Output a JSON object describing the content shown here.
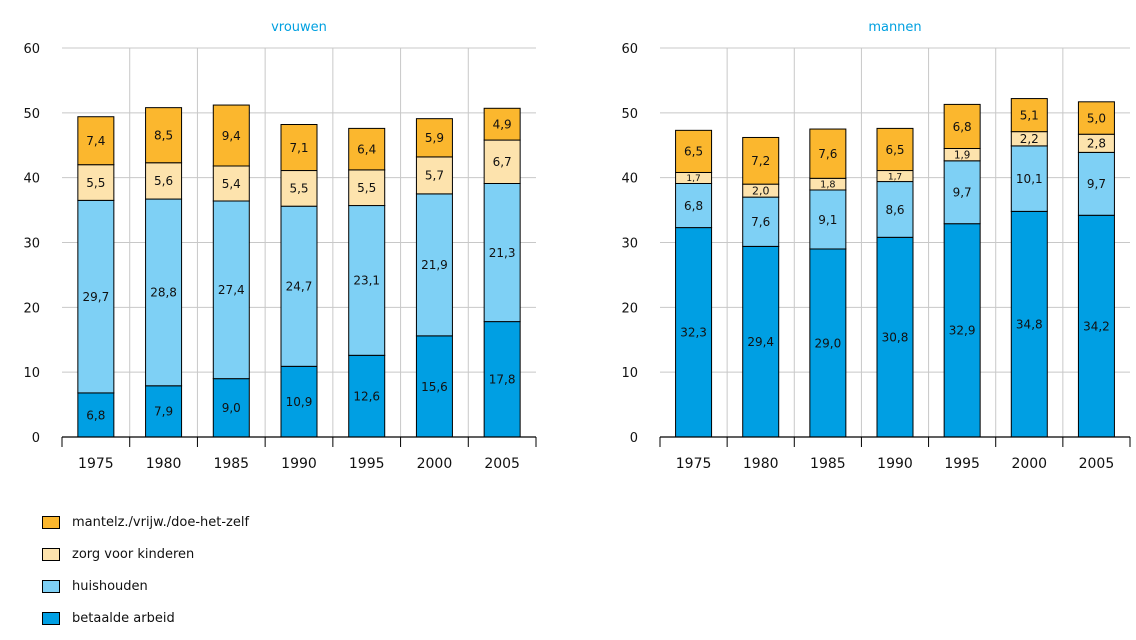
{
  "chart_data": [
    {
      "type": "bar",
      "stacked": true,
      "title": "vrouwen",
      "categories": [
        "1975",
        "1980",
        "1985",
        "1990",
        "1995",
        "2000",
        "2005"
      ],
      "ylim": [
        0,
        60
      ],
      "yticks": [
        "0",
        "10",
        "20",
        "30",
        "40",
        "50",
        "60"
      ],
      "grid": true,
      "series": [
        {
          "name": "betaalde arbeid",
          "values": [
            6.8,
            7.9,
            9.0,
            10.9,
            12.6,
            15.6,
            17.8
          ],
          "labels": [
            "6,8",
            "7,9",
            "9,0",
            "10,9",
            "12,6",
            "15,6",
            "17,8"
          ]
        },
        {
          "name": "huishouden",
          "values": [
            29.7,
            28.8,
            27.4,
            24.7,
            23.1,
            21.9,
            21.3
          ],
          "labels": [
            "29,7",
            "28,8",
            "27,4",
            "24,7",
            "23,1",
            "21,9",
            "21,3"
          ]
        },
        {
          "name": "zorg voor kinderen",
          "values": [
            5.5,
            5.6,
            5.4,
            5.5,
            5.5,
            5.7,
            6.7
          ],
          "labels": [
            "5,5",
            "5,6",
            "5,4",
            "5,5",
            "5,5",
            "5,7",
            "6,7"
          ]
        },
        {
          "name": "mantelz./vrijw./doe-het-zelf",
          "values": [
            7.4,
            8.5,
            9.4,
            7.1,
            6.4,
            5.9,
            4.9
          ],
          "labels": [
            "7,4",
            "8,5",
            "9,4",
            "7,1",
            "6,4",
            "5,9",
            "4,9"
          ]
        }
      ]
    },
    {
      "type": "bar",
      "stacked": true,
      "title": "mannen",
      "categories": [
        "1975",
        "1980",
        "1985",
        "1990",
        "1995",
        "2000",
        "2005"
      ],
      "ylim": [
        0,
        60
      ],
      "yticks": [
        "0",
        "10",
        "20",
        "30",
        "40",
        "50",
        "60"
      ],
      "grid": true,
      "series": [
        {
          "name": "betaalde arbeid",
          "values": [
            32.3,
            29.4,
            29.0,
            30.8,
            32.9,
            34.8,
            34.2
          ],
          "labels": [
            "32,3",
            "29,4",
            "29,0",
            "30,8",
            "32,9",
            "34,8",
            "34,2"
          ]
        },
        {
          "name": "huishouden",
          "values": [
            6.8,
            7.6,
            9.1,
            8.6,
            9.7,
            10.1,
            9.7
          ],
          "labels": [
            "6,8",
            "7,6",
            "9,1",
            "8,6",
            "9,7",
            "10,1",
            "9,7"
          ]
        },
        {
          "name": "zorg voor kinderen",
          "values": [
            1.7,
            2.0,
            1.8,
            1.7,
            1.9,
            2.2,
            2.8
          ],
          "labels": [
            "1,7",
            "2,0",
            "1,8",
            "1,7",
            "1,9",
            "2,2",
            "2,8"
          ]
        },
        {
          "name": "mantelz./vrijw./doe-het-zelf",
          "values": [
            6.5,
            7.2,
            7.6,
            6.5,
            6.8,
            5.1,
            5.0
          ],
          "labels": [
            "6,5",
            "7,2",
            "7,6",
            "6,5",
            "6,8",
            "5,1",
            "5,0"
          ]
        }
      ]
    }
  ],
  "colors": {
    "betaalde arbeid": "#009fe3",
    "huishouden": "#7ed0f5",
    "zorg voor kinderen": "#fde3ad",
    "mantelz./vrijw./doe-het-zelf": "#fbb72e",
    "title": "#00a0e0",
    "grid": "#c8c8c8"
  },
  "legend": [
    {
      "name": "mantelz./vrijw./doe-het-zelf"
    },
    {
      "name": "zorg voor kinderen"
    },
    {
      "name": "huishouden"
    },
    {
      "name": "betaalde arbeid"
    }
  ]
}
